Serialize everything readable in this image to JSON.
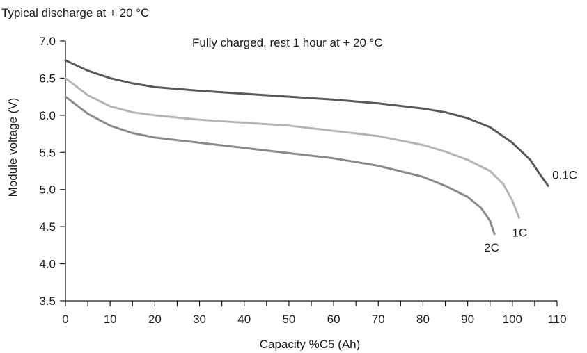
{
  "chart_data": {
    "type": "line",
    "title": "Typical discharge at + 20 °C",
    "annotation": "Fully charged, rest 1 hour at + 20 °C",
    "xlabel": "Capacity %C5 (Ah)",
    "ylabel": "Module voltage (V)",
    "xlim": [
      0,
      110
    ],
    "ylim": [
      3.5,
      7.0
    ],
    "x_ticks": [
      0,
      10,
      20,
      30,
      40,
      50,
      60,
      70,
      80,
      90,
      100,
      110
    ],
    "x_minor_ticks": [
      5,
      15,
      25,
      35,
      45,
      55,
      65,
      75,
      85,
      95,
      105
    ],
    "y_ticks": [
      "3.5",
      "4.0",
      "4.5",
      "5.0",
      "5.5",
      "6.0",
      "6.5",
      "7.0"
    ],
    "grid": false,
    "series": [
      {
        "name": "0.1C",
        "color": "#595959",
        "x": [
          0,
          5,
          10,
          15,
          20,
          30,
          40,
          50,
          60,
          70,
          80,
          85,
          90,
          95,
          100,
          104,
          106,
          108
        ],
        "y": [
          6.74,
          6.6,
          6.5,
          6.43,
          6.38,
          6.33,
          6.29,
          6.25,
          6.21,
          6.16,
          6.09,
          6.04,
          5.96,
          5.84,
          5.63,
          5.4,
          5.22,
          5.05
        ]
      },
      {
        "name": "1C",
        "color": "#b5b5b5",
        "x": [
          0,
          5,
          10,
          15,
          20,
          30,
          40,
          50,
          60,
          70,
          80,
          85,
          90,
          95,
          98,
          100,
          101.5
        ],
        "y": [
          6.5,
          6.27,
          6.12,
          6.04,
          6.0,
          5.94,
          5.9,
          5.86,
          5.79,
          5.72,
          5.6,
          5.51,
          5.4,
          5.25,
          5.07,
          4.85,
          4.62
        ]
      },
      {
        "name": "2C",
        "color": "#8a8a8a",
        "x": [
          0,
          5,
          10,
          15,
          20,
          30,
          40,
          50,
          60,
          70,
          80,
          85,
          90,
          93,
          95,
          96
        ],
        "y": [
          6.25,
          6.02,
          5.86,
          5.76,
          5.7,
          5.63,
          5.56,
          5.49,
          5.42,
          5.32,
          5.17,
          5.05,
          4.9,
          4.75,
          4.58,
          4.4
        ]
      }
    ]
  }
}
